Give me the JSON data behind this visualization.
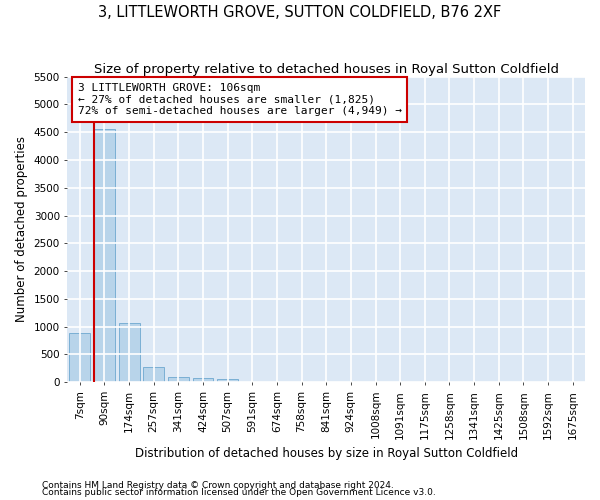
{
  "title": "3, LITTLEWORTH GROVE, SUTTON COLDFIELD, B76 2XF",
  "subtitle": "Size of property relative to detached houses in Royal Sutton Coldfield",
  "xlabel": "Distribution of detached houses by size in Royal Sutton Coldfield",
  "ylabel": "Number of detached properties",
  "footnote1": "Contains HM Land Registry data © Crown copyright and database right 2024.",
  "footnote2": "Contains public sector information licensed under the Open Government Licence v3.0.",
  "bin_labels": [
    "7sqm",
    "90sqm",
    "174sqm",
    "257sqm",
    "341sqm",
    "424sqm",
    "507sqm",
    "591sqm",
    "674sqm",
    "758sqm",
    "841sqm",
    "924sqm",
    "1008sqm",
    "1091sqm",
    "1175sqm",
    "1258sqm",
    "1341sqm",
    "1425sqm",
    "1508sqm",
    "1592sqm",
    "1675sqm"
  ],
  "bin_values": [
    880,
    4560,
    1060,
    280,
    90,
    80,
    60,
    0,
    0,
    0,
    0,
    0,
    0,
    0,
    0,
    0,
    0,
    0,
    0,
    0,
    0
  ],
  "bar_color": "#b8d4ea",
  "bar_edge_color": "#7aafd4",
  "bg_color": "#dce8f5",
  "grid_color": "#ffffff",
  "ylim": [
    0,
    5500
  ],
  "yticks": [
    0,
    500,
    1000,
    1500,
    2000,
    2500,
    3000,
    3500,
    4000,
    4500,
    5000,
    5500
  ],
  "property_line_x": 0.58,
  "annotation_text": "3 LITTLEWORTH GROVE: 106sqm\n← 27% of detached houses are smaller (1,825)\n72% of semi-detached houses are larger (4,949) →",
  "annotation_box_color": "#cc0000",
  "property_line_color": "#cc0000",
  "title_fontsize": 10.5,
  "subtitle_fontsize": 9.5,
  "xlabel_fontsize": 8.5,
  "ylabel_fontsize": 8.5,
  "tick_fontsize": 7.5,
  "annotation_fontsize": 8,
  "footnote_fontsize": 6.5
}
